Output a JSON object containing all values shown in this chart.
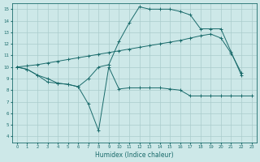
{
  "xlabel": "Humidex (Indice chaleur)",
  "bg_color": "#cde8e8",
  "grid_color": "#aacccc",
  "line_color": "#1a6b6b",
  "xlim": [
    -0.5,
    23.5
  ],
  "ylim": [
    3.5,
    15.5
  ],
  "xticks": [
    0,
    1,
    2,
    3,
    4,
    5,
    6,
    7,
    8,
    9,
    10,
    11,
    12,
    13,
    14,
    15,
    16,
    17,
    18,
    19,
    20,
    21,
    22,
    23
  ],
  "yticks": [
    4,
    5,
    6,
    7,
    8,
    9,
    10,
    11,
    12,
    13,
    14,
    15
  ],
  "line1_x": [
    0,
    1,
    2,
    3,
    4,
    5,
    6,
    7,
    8,
    9,
    10,
    11,
    12,
    13,
    14,
    15,
    16,
    17,
    18,
    19,
    20,
    21,
    22,
    23
  ],
  "line1_y": [
    10,
    9.8,
    9.3,
    8.7,
    8.6,
    8.5,
    8.3,
    6.8,
    4.5,
    10.0,
    8.1,
    8.2,
    8.2,
    8.2,
    8.2,
    8.1,
    8.0,
    7.5,
    7.5,
    7.5,
    7.5,
    7.5,
    7.5,
    7.5
  ],
  "line2_x": [
    0,
    1,
    2,
    3,
    4,
    5,
    6,
    7,
    8,
    9,
    10,
    11,
    12,
    13,
    14,
    15,
    16,
    17,
    18,
    19,
    20,
    21,
    22
  ],
  "line2_y": [
    10,
    10.1,
    10.2,
    10.35,
    10.5,
    10.65,
    10.8,
    10.95,
    11.1,
    11.25,
    11.4,
    11.55,
    11.7,
    11.85,
    12.0,
    12.15,
    12.3,
    12.5,
    12.7,
    12.85,
    12.5,
    11.2,
    9.5
  ],
  "line3_x": [
    0,
    1,
    2,
    3,
    4,
    5,
    6,
    7,
    8,
    9,
    10,
    11,
    12,
    13,
    14,
    15,
    16,
    17,
    18,
    19,
    20,
    21,
    22
  ],
  "line3_y": [
    10,
    9.8,
    9.3,
    9.0,
    8.6,
    8.5,
    8.3,
    9.0,
    10.0,
    10.2,
    12.2,
    13.8,
    15.2,
    15.0,
    15.0,
    15.0,
    14.8,
    14.5,
    13.3,
    13.3,
    13.3,
    11.3,
    9.3
  ]
}
